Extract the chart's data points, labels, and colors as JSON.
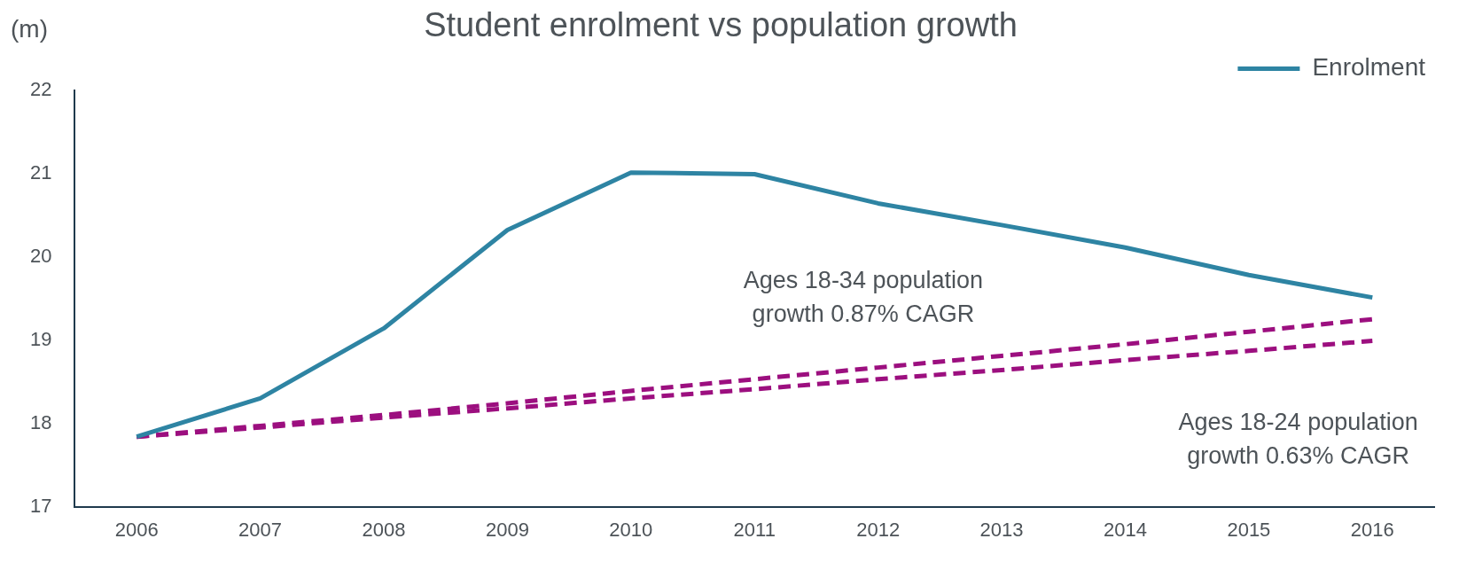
{
  "chart_data": {
    "type": "line",
    "title": "Student enrolment vs population growth",
    "ylabel": "(m)",
    "categories": [
      "2006",
      "2007",
      "2008",
      "2009",
      "2010",
      "2011",
      "2012",
      "2013",
      "2014",
      "2015",
      "2016"
    ],
    "series": [
      {
        "name": "Enrolment",
        "color": "#2e84a3",
        "values": [
          17.84,
          18.3,
          19.14,
          20.32,
          21.01,
          20.99,
          20.64,
          20.38,
          20.11,
          19.78,
          19.51
        ]
      },
      {
        "color": "#9c0f7f",
        "line_style": "dashed",
        "values": [
          17.84,
          17.97,
          18.1,
          18.24,
          18.39,
          18.53,
          18.67,
          18.81,
          18.95,
          19.1,
          19.25
        ]
      },
      {
        "color": "#9c0f7f",
        "line_style": "dashed",
        "values": [
          17.84,
          17.95,
          18.07,
          18.18,
          18.3,
          18.41,
          18.53,
          18.64,
          18.76,
          18.87,
          18.99
        ]
      }
    ],
    "ylim": [
      17,
      22
    ],
    "yticks": [
      17,
      18,
      19,
      20,
      21,
      22
    ],
    "grid": false,
    "legend": "top right",
    "marker": "none",
    "line_style": "solid",
    "annotations": [
      "Ages 18-34 population growth 0.87% CAGR",
      "Ages 18-24 population growth 0.63% CAGR"
    ]
  }
}
